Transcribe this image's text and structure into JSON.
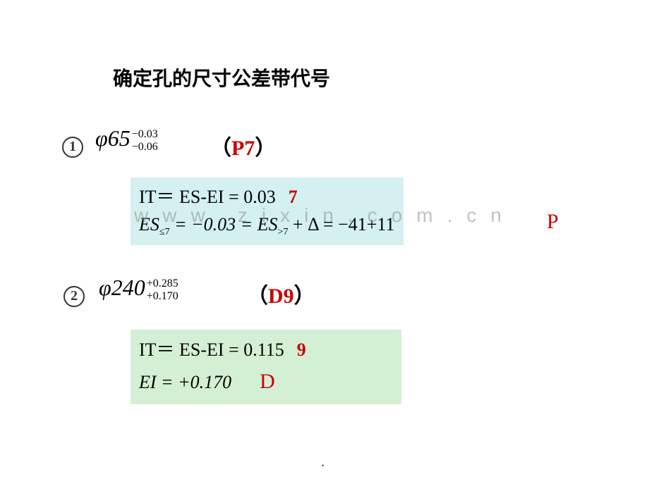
{
  "title": "确定孔的尺寸公差带代号",
  "item1": {
    "circled": "1",
    "phi": "φ",
    "base": "65",
    "upper": "−0.03",
    "lower": "−0.06",
    "paren_open": "（",
    "code": "P7",
    "paren_close": "）",
    "block": {
      "bg": "#d4f0f0",
      "line1_left": "IT＝ ES-EI = 0.03",
      "line1_grade": "7",
      "line2": "ES",
      "line2_sub1": "≤7",
      "line2_mid": " = −0.03 = ",
      "line2_es2": "ES",
      "line2_sub2": ">7",
      "line2_rest": " + Δ = −41+11"
    },
    "result": "P"
  },
  "item2": {
    "circled": "2",
    "phi": "φ",
    "base": "240",
    "upper": "+0.285",
    "lower": "+0.170",
    "paren_open": "（",
    "code": "D9",
    "paren_close": "）",
    "block": {
      "bg": "#d4f0d4",
      "line1_left": "IT＝ ES-EI = 0.115",
      "line1_grade": "9",
      "line2_left": "EI   = +0.170",
      "line2_result": "D"
    }
  },
  "watermark": "www.zixin.com.cn",
  "footer_dot": ".",
  "colors": {
    "red": "#cc0000",
    "block1_bg": "#d4f0f0",
    "block2_bg": "#d4f0d4",
    "text": "#000000",
    "watermark": "#888888"
  },
  "fonts": {
    "title_size": 28,
    "formula_size": 32,
    "block_size": 26,
    "script_size": 16
  }
}
